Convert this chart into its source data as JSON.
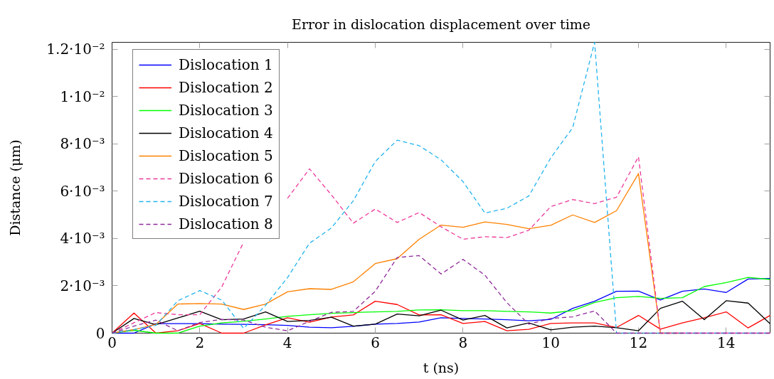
{
  "chart_data": {
    "type": "line",
    "title": "Error in dislocation displacement over time",
    "xlabel": "t (ns)",
    "ylabel": "Distance (μm)",
    "x": [
      0,
      0.5,
      1,
      1.5,
      2,
      2.5,
      3,
      3.5,
      4,
      4.5,
      5,
      5.5,
      6,
      6.5,
      7,
      7.5,
      8,
      8.5,
      9,
      9.5,
      10,
      10.5,
      11,
      11.5,
      12,
      12.5,
      13,
      13.5,
      14,
      14.5,
      15
    ],
    "xlim": [
      0,
      15
    ],
    "xticks": [
      0,
      2,
      4,
      6,
      8,
      10,
      12,
      14
    ],
    "ylim": [
      0,
      0.0123
    ],
    "yticks": [
      0,
      {
        "value": 0.002,
        "label": "2·10⁻³"
      },
      {
        "value": 0.004,
        "label": "4·10⁻³"
      },
      {
        "value": 0.006,
        "label": "6·10⁻³"
      },
      {
        "value": 0.008,
        "label": "8·10⁻³"
      },
      {
        "value": 0.01,
        "label": "1·10⁻²"
      },
      {
        "value": 0.012,
        "label": "1.2·10⁻²"
      }
    ],
    "legend": "top left",
    "series": [
      {
        "name": "Dislocation 1",
        "color": "#0000ff",
        "line_style": "solid",
        "values": [
          0,
          0,
          0.0004,
          0.0004,
          0.0004,
          0.00038,
          0.00037,
          0.00036,
          0.00033,
          0.00025,
          0.00023,
          0.00029,
          0.00038,
          0.00041,
          0.00047,
          0.00065,
          0.00062,
          0.0006,
          0.00057,
          0.00052,
          0.00058,
          0.00105,
          0.00135,
          0.00177,
          0.00178,
          0.0014,
          0.00177,
          0.00187,
          0.00172,
          0.00229,
          0.00231
        ]
      },
      {
        "name": "Dislocation 2",
        "color": "#ff0000",
        "line_style": "solid",
        "values": [
          0,
          0.00085,
          0,
          0.0001,
          0.00041,
          0,
          0,
          0.00035,
          0.00065,
          0.00046,
          0.00068,
          0.00077,
          0.00135,
          0.00121,
          0.00077,
          0.00078,
          0.00041,
          0.00049,
          0.0001,
          0.00016,
          0.00041,
          0.00043,
          0.00043,
          0.00024,
          0.00075,
          0.00017,
          0.00043,
          0.00065,
          0.0009,
          0.00022,
          0.00075
        ]
      },
      {
        "name": "Dislocation 3",
        "color": "#00ff00",
        "line_style": "solid",
        "values": [
          0,
          0.00012,
          0,
          0,
          0.0003,
          0.00043,
          0.0005,
          0.0006,
          0.00071,
          0.00078,
          0.00084,
          0.00087,
          0.0009,
          0.00092,
          0.00098,
          0.00099,
          0.00095,
          0.00095,
          0.00092,
          0.0009,
          0.00085,
          0.00095,
          0.0013,
          0.0015,
          0.00155,
          0.00147,
          0.0015,
          0.00197,
          0.00214,
          0.00236,
          0.00227
        ]
      },
      {
        "name": "Dislocation 4",
        "color": "#000000",
        "line_style": "solid",
        "values": [
          0,
          0.00062,
          0.00036,
          0.00064,
          0.00093,
          0.00057,
          0.0006,
          0.0009,
          0.00049,
          0.00054,
          0.00067,
          0.0003,
          0.00038,
          0.00081,
          0.00073,
          0.00097,
          0.00055,
          0.00075,
          0.00022,
          0.00043,
          0.00014,
          0.00025,
          0.0003,
          0.00023,
          0.0001,
          0.00105,
          0.00135,
          0.00057,
          0.00137,
          0.00127,
          0.0004
        ]
      },
      {
        "name": "Dislocation 5",
        "color": "#ff8000",
        "line_style": "solid",
        "values": [
          0,
          0.00015,
          0.00037,
          0.00123,
          0.00125,
          0.00123,
          0.001,
          0.00123,
          0.00175,
          0.00188,
          0.00185,
          0.00217,
          0.00294,
          0.00315,
          0.00397,
          0.00457,
          0.00448,
          0.0047,
          0.0046,
          0.00442,
          0.00456,
          0.005,
          0.00468,
          0.00518,
          0.00675,
          0,
          0,
          null,
          null,
          null,
          null
        ]
      },
      {
        "name": "Dislocation 6",
        "color": "#ec3a9c",
        "line_style": "dashed",
        "values": [
          0,
          0.00044,
          0.00087,
          0.00078,
          0.00078,
          0.00195,
          0.00385,
          null,
          0.0057,
          0.00695,
          0.00585,
          0.00465,
          0.00525,
          0.00468,
          0.0051,
          0.0045,
          0.00397,
          0.00408,
          0.00404,
          0.00435,
          0.00535,
          0.00565,
          0.00548,
          0.00575,
          0.00746,
          0,
          0,
          0,
          0,
          0,
          0
        ]
      },
      {
        "name": "Dislocation 7",
        "color": "#22b4ee",
        "line_style": "dashed",
        "values": [
          0,
          0.00015,
          0.00033,
          0.00137,
          0.0018,
          0.0014,
          0.0002,
          0.00118,
          0.00235,
          0.0038,
          0.00445,
          0.0056,
          0.00726,
          0.00816,
          0.00793,
          0.00733,
          0.00641,
          0.00508,
          0.00528,
          0.0058,
          0.00741,
          0.00869,
          0.0123,
          0,
          0,
          0,
          0,
          0,
          0,
          0,
          0
        ]
      },
      {
        "name": "Dislocation 8",
        "color": "#8e2a99",
        "line_style": "dashed",
        "values": [
          0,
          0.0003,
          0.00055,
          0.0001,
          0.00045,
          0.00058,
          0.00055,
          0.00025,
          0.0001,
          0.0005,
          0.00088,
          0.00092,
          0.00177,
          0.0032,
          0.00328,
          0.0025,
          0.00312,
          0.00245,
          0.00129,
          0.00038,
          0.00062,
          0.00069,
          0.00094,
          0,
          0,
          0,
          0,
          0,
          0,
          0,
          0
        ]
      }
    ]
  }
}
